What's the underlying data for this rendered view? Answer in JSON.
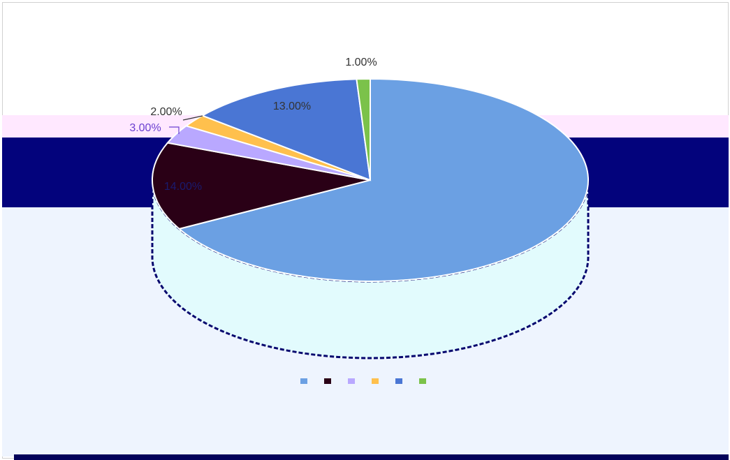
{
  "chart_data": {
    "type": "pie",
    "categories": [
      "",
      "",
      "",
      "",
      "",
      ""
    ],
    "values": [
      67,
      14,
      3,
      2,
      13,
      1
    ],
    "data_labels": [
      "",
      "14.00%",
      "3.00%",
      "2.00%",
      "13.00%",
      "1.00%"
    ],
    "colors": [
      "#6ba0e3",
      "#2a0016",
      "#b9a8ff",
      "#ffc04d",
      "#4a76d4",
      "#7bc24a"
    ],
    "legend_position": "bottom",
    "title": ""
  }
}
